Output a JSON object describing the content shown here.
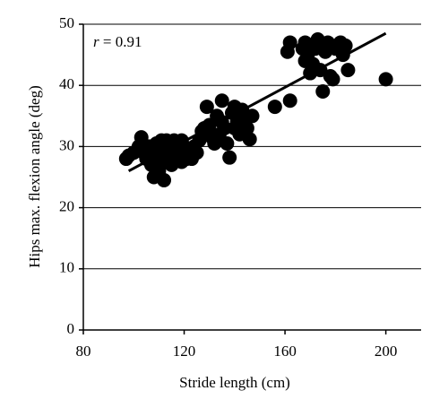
{
  "chart_data": {
    "type": "scatter",
    "x_label": "Stride length (cm)",
    "y_label": "Hips max. flexion angle (deg)",
    "annotation": {
      "symbol": "r",
      "text": "= 0.91"
    },
    "xlim": [
      80,
      214
    ],
    "ylim": [
      0,
      50
    ],
    "xticks": [
      80,
      120,
      160,
      200
    ],
    "yticks": [
      0,
      10,
      20,
      30,
      40,
      50
    ],
    "grid": true,
    "color": "#000000",
    "fit_line": {
      "x": [
        98,
        200
      ],
      "values": [
        26,
        48.5
      ]
    },
    "x": [
      97,
      98,
      100,
      102,
      103,
      104,
      105,
      106,
      107,
      108,
      108,
      109,
      110,
      110,
      111,
      111,
      112,
      112,
      113,
      113,
      114,
      115,
      115,
      116,
      117,
      117,
      118,
      119,
      119,
      120,
      121,
      122,
      123,
      124,
      125,
      126,
      127,
      128,
      129,
      130,
      131,
      132,
      133,
      134,
      135,
      135,
      136,
      137,
      138,
      139,
      140,
      140,
      141,
      142,
      143,
      144,
      145,
      146,
      147,
      156,
      162,
      161,
      162,
      167,
      168,
      168,
      169,
      170,
      171,
      172,
      173,
      174,
      175,
      176,
      177,
      178,
      179,
      180,
      182,
      183,
      184,
      185,
      200
    ],
    "values": [
      28,
      28.5,
      29,
      30,
      31.5,
      29,
      28,
      30,
      27,
      25,
      29,
      30.5,
      28,
      26,
      31,
      29,
      24.5,
      27.5,
      30,
      31,
      28,
      29.5,
      27,
      31,
      30,
      28,
      29,
      27.5,
      31,
      30,
      28,
      29.5,
      28,
      30,
      29,
      31,
      32.5,
      33,
      36.5,
      33.5,
      31.5,
      30.5,
      35,
      32,
      37.5,
      34,
      33,
      30.5,
      28.2,
      35.5,
      36.5,
      33,
      34,
      32,
      36,
      34.5,
      33,
      31.2,
      35,
      36.5,
      37.5,
      45.5,
      47,
      46,
      44,
      47,
      45,
      42,
      43.5,
      46,
      47.5,
      42.5,
      39,
      45.5,
      47,
      41.5,
      41,
      46,
      47,
      45,
      46.5,
      42.5,
      41
    ]
  }
}
